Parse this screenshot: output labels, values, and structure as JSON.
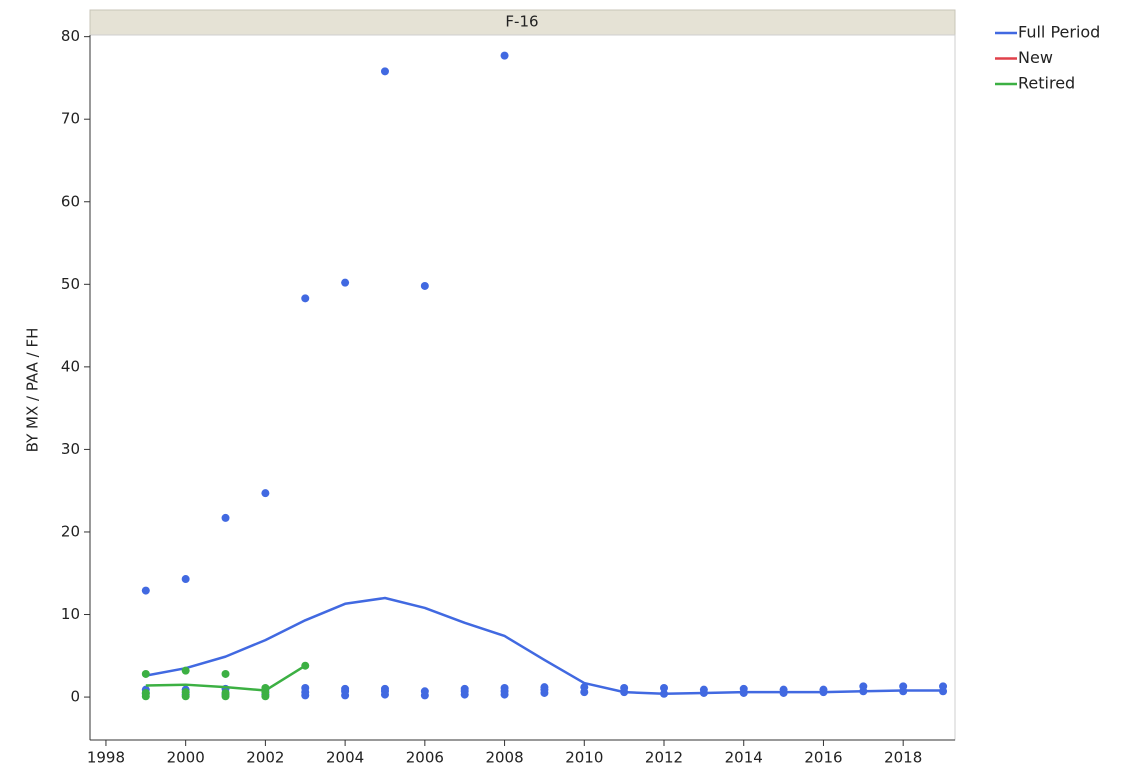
{
  "chart_data": {
    "type": "scatter",
    "title": "F-16",
    "y_label": "BY MX / PAA / FH",
    "xlim": [
      1997.6,
      2019.3
    ],
    "ylim": [
      -5.2,
      80.2
    ],
    "xticks": [
      1998,
      2000,
      2002,
      2004,
      2006,
      2008,
      2010,
      2012,
      2014,
      2016,
      2018
    ],
    "yticks": [
      0,
      10,
      20,
      30,
      40,
      50,
      60,
      70,
      80
    ],
    "legend": "right",
    "series": [
      {
        "name": "Full Period",
        "color": "#4169e1",
        "x": [
          1999,
          1999,
          1999,
          2000,
          2000,
          2000,
          2001,
          2001,
          2001,
          2002,
          2002,
          2002,
          2003,
          2003,
          2003,
          2003,
          2004,
          2004,
          2004,
          2004,
          2005,
          2005,
          2005,
          2005,
          2006,
          2006,
          2006,
          2007,
          2007,
          2007,
          2008,
          2008,
          2008,
          2008,
          2009,
          2009,
          2009,
          2010,
          2010,
          2011,
          2011,
          2012,
          2012,
          2013,
          2013,
          2014,
          2014,
          2015,
          2015,
          2016,
          2016,
          2017,
          2017,
          2018,
          2018,
          2019,
          2019
        ],
        "values": [
          12.9,
          0.4,
          0.9,
          14.3,
          0.3,
          0.9,
          21.7,
          0.3,
          1.0,
          24.7,
          0.3,
          0.9,
          48.3,
          0.2,
          0.6,
          1.1,
          50.2,
          0.2,
          0.7,
          1.0,
          75.8,
          0.3,
          0.7,
          1.0,
          49.8,
          0.2,
          0.7,
          0.3,
          0.7,
          1.0,
          77.7,
          0.3,
          0.7,
          1.1,
          0.5,
          0.9,
          1.2,
          0.6,
          1.2,
          0.6,
          1.1,
          0.4,
          1.1,
          0.5,
          0.9,
          0.5,
          1.0,
          0.5,
          0.9,
          0.6,
          0.9,
          0.7,
          1.3,
          0.7,
          1.3,
          0.7,
          1.3
        ],
        "fit_x": [
          1999,
          2000,
          2001,
          2002,
          2003,
          2004,
          2005,
          2006,
          2007,
          2008,
          2009,
          2010,
          2011,
          2012,
          2013,
          2014,
          2015,
          2016,
          2017,
          2018,
          2019
        ],
        "fit_values": [
          2.6,
          3.5,
          4.9,
          6.9,
          9.3,
          11.3,
          12.0,
          10.8,
          9.0,
          7.4,
          4.5,
          1.7,
          0.6,
          0.4,
          0.5,
          0.6,
          0.6,
          0.6,
          0.7,
          0.8,
          0.8
        ]
      },
      {
        "name": "New",
        "color": "#e0404a",
        "x": [],
        "values": [],
        "fit_x": [],
        "fit_values": []
      },
      {
        "name": "Retired",
        "color": "#3cb043",
        "x": [
          1999,
          1999,
          1999,
          2000,
          2000,
          2000,
          2001,
          2001,
          2001,
          2002,
          2002,
          2002,
          2003
        ],
        "values": [
          2.8,
          0.1,
          0.5,
          3.2,
          0.1,
          0.6,
          2.8,
          0.1,
          0.5,
          1.1,
          0.1,
          0.6,
          3.8
        ],
        "fit_x": [
          1999,
          2000,
          2001,
          2002,
          2003
        ],
        "fit_values": [
          1.4,
          1.5,
          1.2,
          0.8,
          3.8
        ]
      }
    ]
  }
}
